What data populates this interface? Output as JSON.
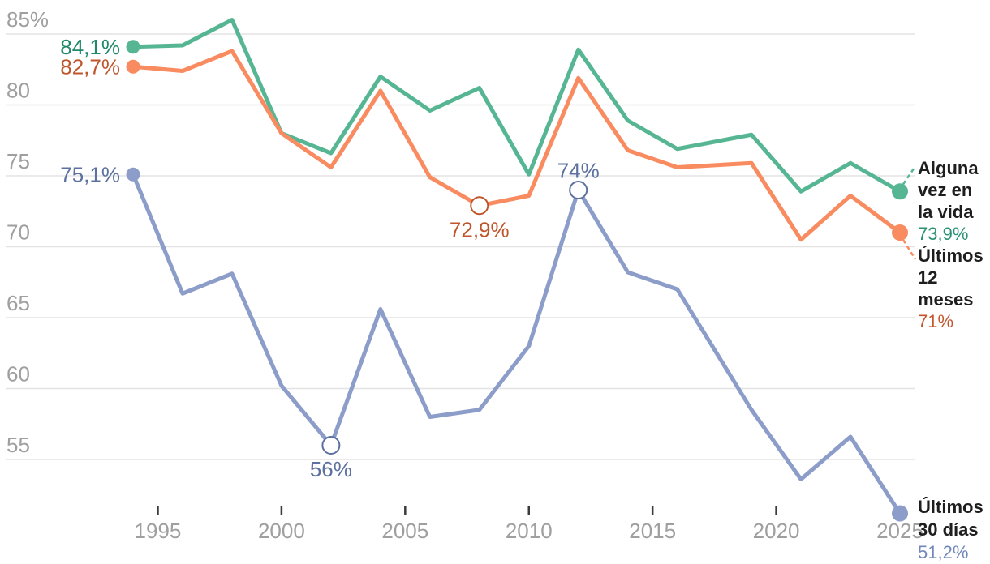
{
  "chart_data": {
    "type": "line",
    "title": "",
    "x": [
      1994,
      1996,
      1998,
      2000,
      2002,
      2004,
      2006,
      2008,
      2010,
      2012,
      2014,
      2016,
      2019,
      2021,
      2023,
      2025
    ],
    "x_axis": {
      "tick_values": [
        1995,
        2000,
        2005,
        2010,
        2015,
        2020,
        2025
      ],
      "tick_labels": [
        "1995",
        "2000",
        "2005",
        "2010",
        "2015",
        "2020",
        "2025"
      ]
    },
    "y_axis": {
      "unit": "%",
      "tick_values": [
        85,
        80,
        75,
        70,
        65,
        60,
        55
      ],
      "tick_labels": [
        "85%",
        "80",
        "75",
        "70",
        "65",
        "60",
        "55"
      ],
      "range": [
        51,
        86
      ]
    },
    "grid": true,
    "legend_position": "right-end-labels",
    "series": [
      {
        "name": "Alguna vez en la vida",
        "end_label": "73,9%",
        "color": "#56b694",
        "text_color": "#21896a",
        "value_color": "#2a9273",
        "values": [
          84.1,
          84.2,
          86.0,
          78.0,
          76.6,
          82.0,
          79.6,
          81.2,
          75.1,
          83.9,
          78.9,
          76.9,
          77.9,
          73.9,
          75.9,
          73.9
        ]
      },
      {
        "name": "Últimos 12 meses",
        "end_label": "71%",
        "color": "#f98b60",
        "text_color": "#bf552b",
        "value_color": "#c4562c",
        "values": [
          82.7,
          82.4,
          83.8,
          78.0,
          75.6,
          81.0,
          74.9,
          72.9,
          73.6,
          81.9,
          76.8,
          75.6,
          75.9,
          70.5,
          73.6,
          71.0
        ]
      },
      {
        "name": "Últimos 30 días",
        "end_label": "51,2%",
        "color": "#8c9dc9",
        "text_color": "#5d71a0",
        "value_color": "#7187ba",
        "values": [
          75.1,
          66.7,
          68.1,
          60.2,
          56.0,
          65.6,
          58.0,
          58.5,
          63.0,
          74.0,
          68.2,
          67.0,
          58.5,
          53.6,
          56.6,
          51.2
        ]
      }
    ],
    "annotations": [
      {
        "series": 0,
        "x": 1994,
        "text": "84,1%",
        "placement": "left"
      },
      {
        "series": 1,
        "x": 1994,
        "text": "82,7%",
        "placement": "left"
      },
      {
        "series": 2,
        "x": 1994,
        "text": "75,1%",
        "placement": "left"
      },
      {
        "series": 1,
        "x": 2008,
        "text": "72,9%",
        "placement": "below",
        "marker": "open-circle"
      },
      {
        "series": 2,
        "x": 2002,
        "text": "56%",
        "placement": "below",
        "marker": "open-circle"
      },
      {
        "series": 2,
        "x": 2012,
        "text": "74%",
        "placement": "above",
        "marker": "open-circle"
      }
    ]
  },
  "theme": {
    "background": "#ffffff",
    "grid_color": "#e3e3e3",
    "axis_text_color": "#9f9f9f",
    "tick_color": "#3b3b3b",
    "label_text_color": "#1e1e1e"
  }
}
